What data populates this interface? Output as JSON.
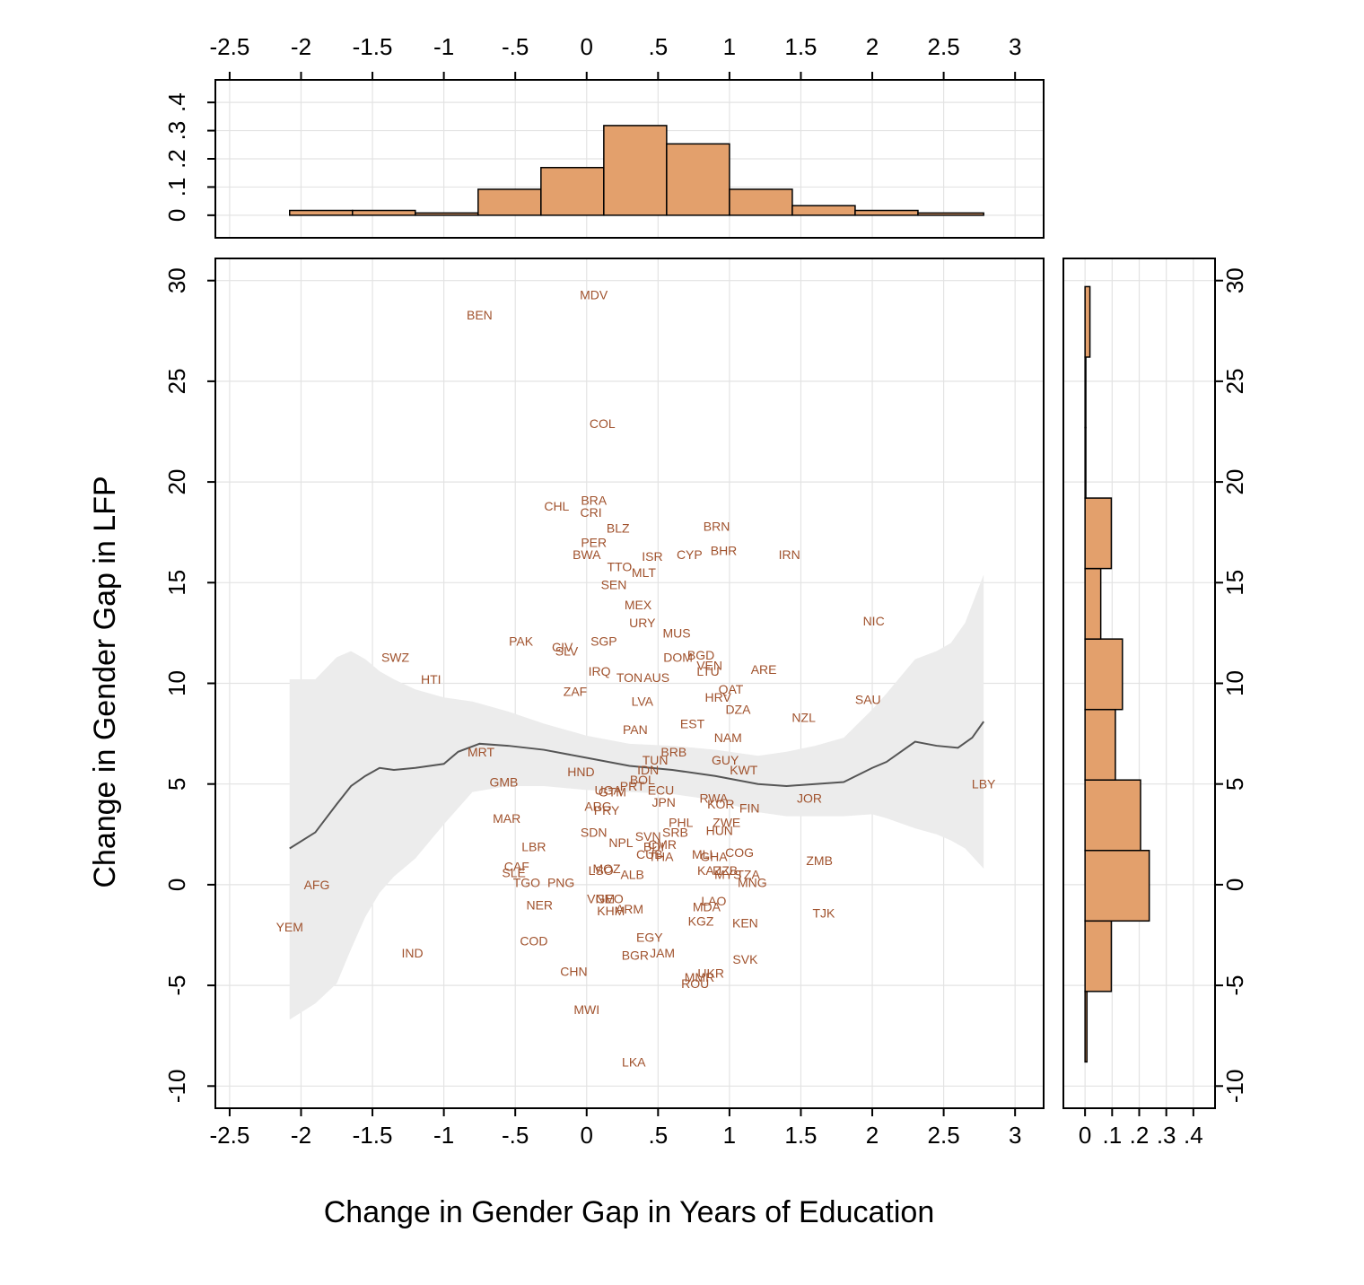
{
  "chart_data": {
    "type": "scatter",
    "xlabel": "Change in Gender Gap in Years of Education",
    "ylabel": "Change in Gender Gap in LFP",
    "xlim": [
      -2.6,
      3.2
    ],
    "ylim": [
      -11.1,
      31.1
    ],
    "xticks": [
      -2.5,
      -2,
      -1.5,
      -1,
      -0.5,
      0,
      0.5,
      1,
      1.5,
      2,
      2.5,
      3
    ],
    "xtick_labels": [
      "-2.5",
      "-2",
      "-1.5",
      "-1",
      "-.5",
      "0",
      ".5",
      "1",
      "1.5",
      "2",
      "2.5",
      "3"
    ],
    "yticks": [
      -10,
      -5,
      0,
      5,
      10,
      15,
      20,
      25,
      30
    ],
    "ytick_labels": [
      "-10",
      "-5",
      "0",
      "5",
      "10",
      "15",
      "20",
      "25",
      "30"
    ],
    "grid": true,
    "points": [
      {
        "label": "MDV",
        "x": 0.05,
        "y": 29.3
      },
      {
        "label": "BEN",
        "x": -0.75,
        "y": 28.3
      },
      {
        "label": "COL",
        "x": 0.11,
        "y": 22.9
      },
      {
        "label": "CHL",
        "x": -0.21,
        "y": 18.8
      },
      {
        "label": "BRA",
        "x": 0.05,
        "y": 19.1
      },
      {
        "label": "CRI",
        "x": 0.03,
        "y": 18.5
      },
      {
        "label": "BLZ",
        "x": 0.22,
        "y": 17.7
      },
      {
        "label": "BRN",
        "x": 0.91,
        "y": 17.8
      },
      {
        "label": "PER",
        "x": 0.05,
        "y": 17.0
      },
      {
        "label": "BWA",
        "x": 0.0,
        "y": 16.4
      },
      {
        "label": "ISR",
        "x": 0.46,
        "y": 16.3
      },
      {
        "label": "CYP",
        "x": 0.72,
        "y": 16.4
      },
      {
        "label": "BHR",
        "x": 0.96,
        "y": 16.6
      },
      {
        "label": "IRN",
        "x": 1.42,
        "y": 16.4
      },
      {
        "label": "TTO",
        "x": 0.23,
        "y": 15.8
      },
      {
        "label": "MLT",
        "x": 0.4,
        "y": 15.5
      },
      {
        "label": "SEN",
        "x": 0.19,
        "y": 14.9
      },
      {
        "label": "MEX",
        "x": 0.36,
        "y": 13.9
      },
      {
        "label": "URY",
        "x": 0.39,
        "y": 13.0
      },
      {
        "label": "MUS",
        "x": 0.63,
        "y": 12.5
      },
      {
        "label": "NIC",
        "x": 2.01,
        "y": 13.1
      },
      {
        "label": "PAK",
        "x": -0.46,
        "y": 12.1
      },
      {
        "label": "SGP",
        "x": 0.12,
        "y": 12.1
      },
      {
        "label": "CIV",
        "x": -0.17,
        "y": 11.8
      },
      {
        "label": "SLV",
        "x": -0.14,
        "y": 11.6
      },
      {
        "label": "SWZ",
        "x": -1.34,
        "y": 11.3
      },
      {
        "label": "DOM",
        "x": 0.64,
        "y": 11.3
      },
      {
        "label": "BGD",
        "x": 0.8,
        "y": 11.4
      },
      {
        "label": "VEN",
        "x": 0.86,
        "y": 10.9
      },
      {
        "label": "ARE",
        "x": 1.24,
        "y": 10.7
      },
      {
        "label": "IRQ",
        "x": 0.09,
        "y": 10.6
      },
      {
        "label": "TON",
        "x": 0.3,
        "y": 10.3
      },
      {
        "label": "AUS",
        "x": 0.49,
        "y": 10.3
      },
      {
        "label": "LTU",
        "x": 0.85,
        "y": 10.6
      },
      {
        "label": "HTI",
        "x": -1.09,
        "y": 10.2
      },
      {
        "label": "ZAF",
        "x": -0.08,
        "y": 9.6
      },
      {
        "label": "QAT",
        "x": 1.01,
        "y": 9.7
      },
      {
        "label": "HRV",
        "x": 0.92,
        "y": 9.3
      },
      {
        "label": "LVA",
        "x": 0.39,
        "y": 9.1
      },
      {
        "label": "SAU",
        "x": 1.97,
        "y": 9.2
      },
      {
        "label": "DZA",
        "x": 1.06,
        "y": 8.7
      },
      {
        "label": "NZL",
        "x": 1.52,
        "y": 8.3
      },
      {
        "label": "EST",
        "x": 0.74,
        "y": 8.0
      },
      {
        "label": "PAN",
        "x": 0.34,
        "y": 7.7
      },
      {
        "label": "NAM",
        "x": 0.99,
        "y": 7.3
      },
      {
        "label": "MRT",
        "x": -0.74,
        "y": 6.6
      },
      {
        "label": "BRB",
        "x": 0.61,
        "y": 6.6
      },
      {
        "label": "TUN",
        "x": 0.48,
        "y": 6.2
      },
      {
        "label": "GUY",
        "x": 0.97,
        "y": 6.2
      },
      {
        "label": "HND",
        "x": -0.04,
        "y": 5.6
      },
      {
        "label": "IDN",
        "x": 0.43,
        "y": 5.7
      },
      {
        "label": "KWT",
        "x": 1.1,
        "y": 5.7
      },
      {
        "label": "GMB",
        "x": -0.58,
        "y": 5.1
      },
      {
        "label": "BOL",
        "x": 0.39,
        "y": 5.2
      },
      {
        "label": "LBY",
        "x": 2.78,
        "y": 5.0
      },
      {
        "label": "UGA",
        "x": 0.15,
        "y": 4.7
      },
      {
        "label": "PRT",
        "x": 0.32,
        "y": 4.9
      },
      {
        "label": "ECU",
        "x": 0.52,
        "y": 4.7
      },
      {
        "label": "GTM",
        "x": 0.18,
        "y": 4.6
      },
      {
        "label": "RWA",
        "x": 0.89,
        "y": 4.3
      },
      {
        "label": "JOR",
        "x": 1.56,
        "y": 4.3
      },
      {
        "label": "JPN",
        "x": 0.54,
        "y": 4.1
      },
      {
        "label": "ARG",
        "x": 0.08,
        "y": 3.9
      },
      {
        "label": "KOR",
        "x": 0.94,
        "y": 4.0
      },
      {
        "label": "FIN",
        "x": 1.14,
        "y": 3.8
      },
      {
        "label": "PRY",
        "x": 0.14,
        "y": 3.7
      },
      {
        "label": "MAR",
        "x": -0.56,
        "y": 3.3
      },
      {
        "label": "PHL",
        "x": 0.66,
        "y": 3.1
      },
      {
        "label": "ZWE",
        "x": 0.98,
        "y": 3.1
      },
      {
        "label": "SRB",
        "x": 0.62,
        "y": 2.6
      },
      {
        "label": "HUN",
        "x": 0.93,
        "y": 2.7
      },
      {
        "label": "SDN",
        "x": 0.05,
        "y": 2.6
      },
      {
        "label": "SVN",
        "x": 0.43,
        "y": 2.4
      },
      {
        "label": "NPL",
        "x": 0.24,
        "y": 2.1
      },
      {
        "label": "CMR",
        "x": 0.53,
        "y": 2.0
      },
      {
        "label": "BDI",
        "x": 0.47,
        "y": 1.9
      },
      {
        "label": "LBR",
        "x": -0.37,
        "y": 1.9
      },
      {
        "label": "CUB",
        "x": 0.44,
        "y": 1.5
      },
      {
        "label": "THA",
        "x": 0.52,
        "y": 1.4
      },
      {
        "label": "GHA",
        "x": 0.89,
        "y": 1.4
      },
      {
        "label": "COG",
        "x": 1.07,
        "y": 1.6
      },
      {
        "label": "MLI",
        "x": 0.81,
        "y": 1.5
      },
      {
        "label": "ZMB",
        "x": 1.63,
        "y": 1.2
      },
      {
        "label": "CAF",
        "x": -0.49,
        "y": 0.9
      },
      {
        "label": "SLE",
        "x": -0.51,
        "y": 0.6
      },
      {
        "label": "MOZ",
        "x": 0.14,
        "y": 0.8
      },
      {
        "label": "LSO",
        "x": 0.1,
        "y": 0.7
      },
      {
        "label": "ALB",
        "x": 0.32,
        "y": 0.5
      },
      {
        "label": "KAZ",
        "x": 0.86,
        "y": 0.7
      },
      {
        "label": "UZB",
        "x": 0.97,
        "y": 0.7
      },
      {
        "label": "MYS",
        "x": 0.99,
        "y": 0.5
      },
      {
        "label": "TZA",
        "x": 1.13,
        "y": 0.5
      },
      {
        "label": "MNG",
        "x": 1.16,
        "y": 0.1
      },
      {
        "label": "TGO",
        "x": -0.42,
        "y": 0.1
      },
      {
        "label": "PNG",
        "x": -0.18,
        "y": 0.1
      },
      {
        "label": "AFG",
        "x": -1.89,
        "y": 0.0
      },
      {
        "label": "VNM",
        "x": 0.1,
        "y": -0.7
      },
      {
        "label": "GEO",
        "x": 0.16,
        "y": -0.7
      },
      {
        "label": "NER",
        "x": -0.33,
        "y": -1.0
      },
      {
        "label": "LAO",
        "x": 0.89,
        "y": -0.8
      },
      {
        "label": "MDA",
        "x": 0.84,
        "y": -1.1
      },
      {
        "label": "ARM",
        "x": 0.3,
        "y": -1.2
      },
      {
        "label": "KHM",
        "x": 0.17,
        "y": -1.3
      },
      {
        "label": "TJK",
        "x": 1.66,
        "y": -1.4
      },
      {
        "label": "KGZ",
        "x": 0.8,
        "y": -1.8
      },
      {
        "label": "KEN",
        "x": 1.11,
        "y": -1.9
      },
      {
        "label": "YEM",
        "x": -2.08,
        "y": -2.1
      },
      {
        "label": "EGY",
        "x": 0.44,
        "y": -2.6
      },
      {
        "label": "COD",
        "x": -0.37,
        "y": -2.8
      },
      {
        "label": "JAM",
        "x": 0.53,
        "y": -3.4
      },
      {
        "label": "BGR",
        "x": 0.34,
        "y": -3.5
      },
      {
        "label": "IND",
        "x": -1.22,
        "y": -3.4
      },
      {
        "label": "SVK",
        "x": 1.11,
        "y": -3.7
      },
      {
        "label": "CHN",
        "x": -0.09,
        "y": -4.3
      },
      {
        "label": "UKR",
        "x": 0.87,
        "y": -4.4
      },
      {
        "label": "MMR",
        "x": 0.79,
        "y": -4.6
      },
      {
        "label": "ROU",
        "x": 0.76,
        "y": -4.9
      },
      {
        "label": "MWI",
        "x": 0.0,
        "y": -6.2
      },
      {
        "label": "LKA",
        "x": 0.33,
        "y": -8.8
      }
    ],
    "smooth_fit": {
      "x": [
        -2.08,
        -1.9,
        -1.75,
        -1.65,
        -1.55,
        -1.45,
        -1.35,
        -1.2,
        -1.0,
        -0.9,
        -0.75,
        -0.55,
        -0.3,
        0.0,
        0.3,
        0.6,
        0.9,
        1.2,
        1.4,
        1.6,
        1.8,
        2.0,
        2.1,
        2.3,
        2.45,
        2.6,
        2.7,
        2.78
      ],
      "y": [
        1.8,
        2.6,
        4.0,
        4.9,
        5.4,
        5.8,
        5.7,
        5.8,
        6.0,
        6.6,
        7.0,
        6.9,
        6.7,
        6.3,
        5.9,
        5.7,
        5.4,
        5.0,
        4.9,
        5.0,
        5.1,
        5.8,
        6.1,
        7.1,
        6.9,
        6.8,
        7.3,
        8.1
      ]
    },
    "confidence_band": {
      "x": [
        -2.08,
        -1.9,
        -1.75,
        -1.65,
        -1.55,
        -1.45,
        -1.35,
        -1.2,
        -1.0,
        -0.8,
        -0.55,
        -0.3,
        0.0,
        0.3,
        0.6,
        0.9,
        1.2,
        1.4,
        1.6,
        1.8,
        2.0,
        2.1,
        2.3,
        2.45,
        2.55,
        2.65,
        2.78
      ],
      "upper": [
        10.2,
        10.2,
        11.3,
        11.6,
        11.2,
        10.6,
        10.2,
        9.7,
        9.3,
        9.1,
        8.6,
        8.0,
        7.4,
        7.0,
        6.9,
        6.7,
        6.4,
        6.6,
        6.9,
        7.3,
        8.7,
        9.5,
        11.2,
        11.6,
        12.0,
        13.0,
        15.4
      ],
      "lower": [
        -6.7,
        -5.9,
        -4.9,
        -3.2,
        -1.6,
        -0.4,
        0.4,
        1.3,
        3.0,
        4.6,
        4.9,
        4.9,
        4.7,
        4.6,
        4.5,
        4.2,
        3.6,
        3.4,
        3.4,
        3.4,
        3.5,
        3.3,
        2.8,
        2.5,
        2.2,
        1.8,
        0.8
      ]
    },
    "x_marginal_histogram": {
      "bin_edges": [
        -2.08,
        -1.64,
        -1.2,
        -0.76,
        -0.32,
        0.12,
        0.56,
        1.0,
        1.44,
        1.88,
        2.32,
        2.78
      ],
      "density": [
        0.017,
        0.017,
        0.008,
        0.092,
        0.169,
        0.318,
        0.253,
        0.092,
        0.034,
        0.017,
        0.008
      ],
      "ticks": [
        0,
        0.1,
        0.2,
        0.3,
        0.4
      ],
      "tick_labels": [
        "0",
        ".1",
        ".2",
        ".3",
        ".4"
      ]
    },
    "y_marginal_histogram": {
      "bin_edges": [
        -8.8,
        -5.3,
        -1.8,
        1.7,
        5.2,
        8.7,
        12.2,
        15.7,
        19.2,
        22.7,
        26.2,
        29.7
      ],
      "density": [
        0.007,
        0.097,
        0.237,
        0.205,
        0.112,
        0.138,
        0.058,
        0.097,
        0.003,
        0.003,
        0.018
      ],
      "ticks": [
        0,
        0.1,
        0.2,
        0.3,
        0.4
      ],
      "tick_labels": [
        "0",
        ".1",
        ".2",
        ".3",
        ".4"
      ]
    },
    "colors": {
      "label_text": "#a0522d",
      "bar_fill": "#e3a06c",
      "band_fill": "#ececec",
      "line": "#555555",
      "grid": "#e3e3e3"
    }
  }
}
